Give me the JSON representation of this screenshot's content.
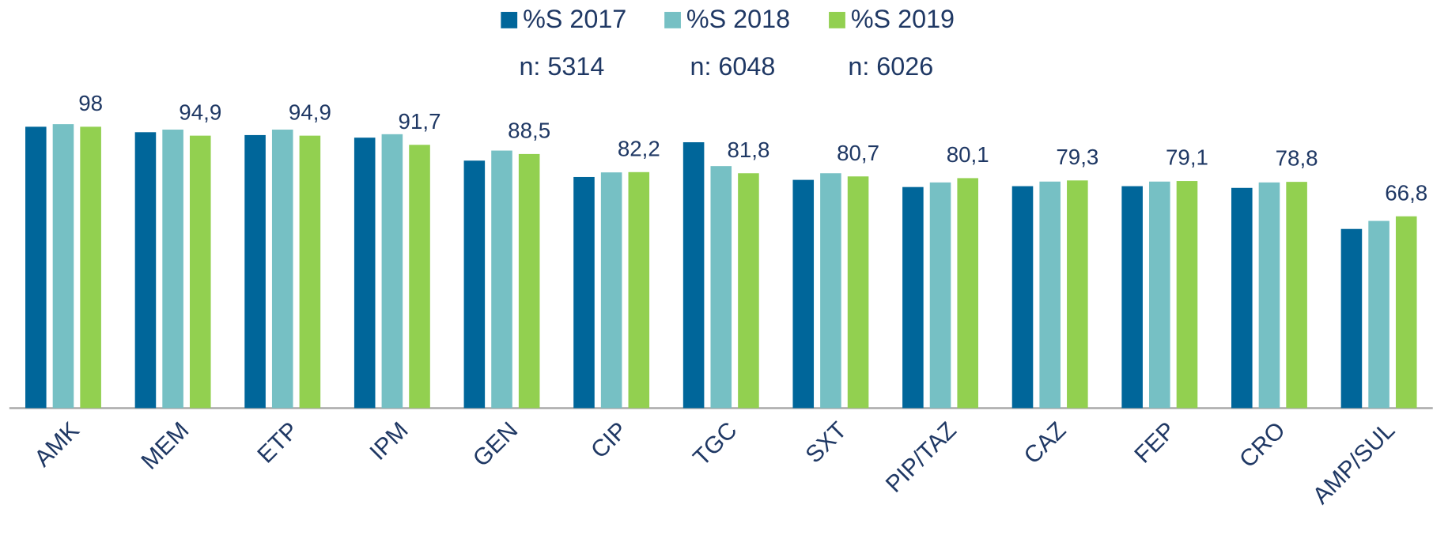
{
  "chart_data": {
    "type": "bar",
    "categories": [
      "AMK",
      "MEM",
      "ETP",
      "IPM",
      "GEN",
      "CIP",
      "TGC",
      "SXT",
      "PIP/TAZ",
      "CAZ",
      "FEP",
      "CRO",
      "AMP/SUL"
    ],
    "series": [
      {
        "name": "%S 2017",
        "n_label": "n: 5314",
        "color": "#00669a",
        "values": [
          98.0,
          96.1,
          95.1,
          94.2,
          86.2,
          80.5,
          92.6,
          79.5,
          77.0,
          77.3,
          77.3,
          76.7,
          62.4
        ]
      },
      {
        "name": "%S 2018",
        "n_label": "n: 6048",
        "color": "#76c0c4",
        "values": [
          98.9,
          97.0,
          97.0,
          95.4,
          89.7,
          82.1,
          84.3,
          81.8,
          78.6,
          78.9,
          78.9,
          78.6,
          65.2
        ]
      },
      {
        "name": "%S 2019",
        "n_label": "n: 6026",
        "color": "#92d050",
        "values": [
          98,
          94.9,
          94.9,
          91.7,
          88.5,
          82.2,
          81.8,
          80.7,
          80.1,
          79.3,
          79.1,
          78.8,
          66.8
        ],
        "value_labels": [
          "98",
          "94,9",
          "94,9",
          "91,7",
          "88,5",
          "82,2",
          "81,8",
          "80,7",
          "80,1",
          "79,3",
          "79,1",
          "78,8",
          "66,8"
        ]
      }
    ],
    "legend": "top"
  }
}
